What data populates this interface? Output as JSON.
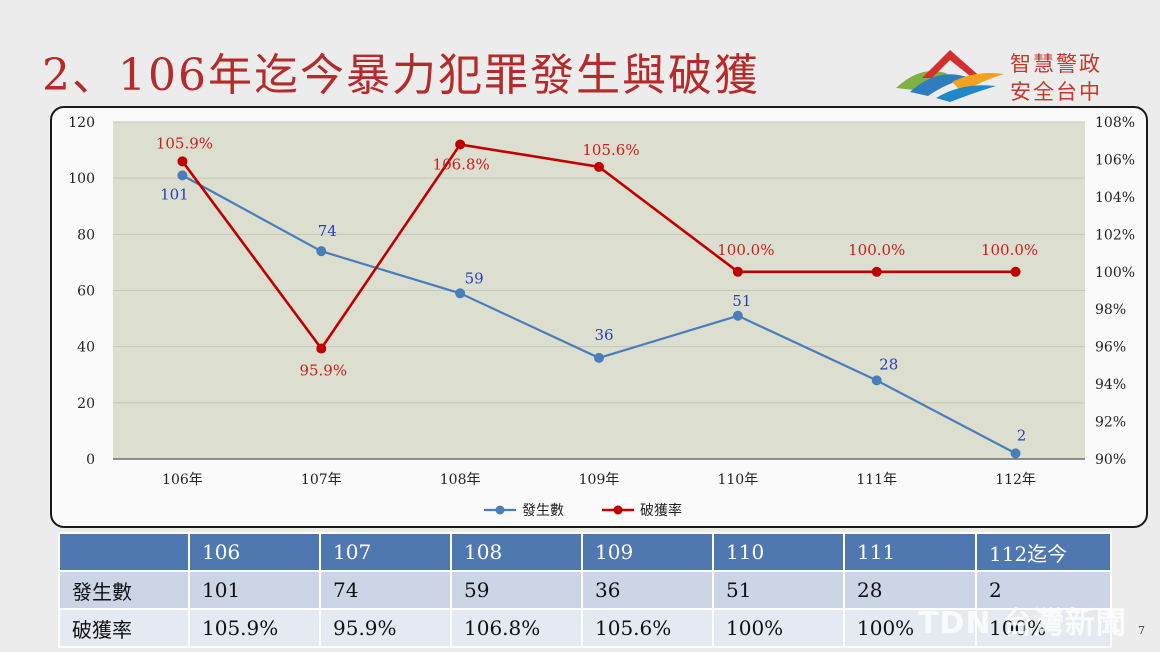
{
  "title": "2、106年迄今暴力犯罪發生與破獲",
  "logo": {
    "line1": "智慧警政",
    "line2": "安全台中"
  },
  "chart_data": {
    "type": "line",
    "categories": [
      "106年",
      "107年",
      "108年",
      "109年",
      "110年",
      "111年",
      "112年"
    ],
    "series": [
      {
        "name": "發生數",
        "axis": "left",
        "color": "#4a7ebb",
        "values": [
          101,
          74,
          59,
          36,
          51,
          28,
          2
        ],
        "labels": [
          "101",
          "74",
          "59",
          "36",
          "51",
          "28",
          "2"
        ]
      },
      {
        "name": "破獲率",
        "axis": "right",
        "color": "#c00000",
        "values": [
          105.9,
          95.9,
          106.8,
          105.6,
          100.0,
          100.0,
          100.0
        ],
        "labels": [
          "105.9%",
          "95.9%",
          "106.8%",
          "105.6%",
          "100.0%",
          "100.0%",
          "100.0%"
        ]
      }
    ],
    "yleft": {
      "lim": [
        0,
        120
      ],
      "ticks": [
        "0",
        "20",
        "40",
        "60",
        "80",
        "100",
        "120"
      ]
    },
    "yright": {
      "lim": [
        90,
        108
      ],
      "ticks": [
        "90%",
        "92%",
        "94%",
        "96%",
        "98%",
        "100%",
        "102%",
        "104%",
        "106%",
        "108%"
      ]
    },
    "grid": true,
    "legend": "bottom",
    "plot_background": "#dcdfcf"
  },
  "table": {
    "headers": [
      "",
      "106",
      "107",
      "108",
      "109",
      "110",
      "111",
      "112迄今"
    ],
    "rows": [
      [
        "發生數",
        "101",
        "74",
        "59",
        "36",
        "51",
        "28",
        "2"
      ],
      [
        "破獲率",
        "105.9%",
        "95.9%",
        "106.8%",
        "105.6%",
        "100%",
        "100%",
        "100%"
      ]
    ]
  },
  "watermark": "TDN 台灣新聞",
  "page_number": "7"
}
